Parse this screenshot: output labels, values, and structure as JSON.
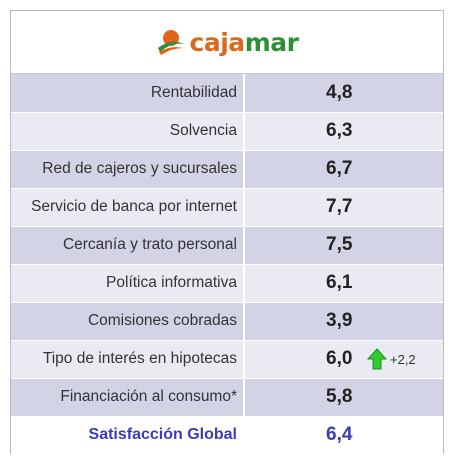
{
  "brand": {
    "name_prefix": "caja",
    "name_suffix": "mar",
    "icon": "cajamar-swoosh-logo",
    "colors": {
      "orange": "#d96a1b",
      "green": "#2f8e3b"
    }
  },
  "rows": [
    {
      "label": "Rentabilidad",
      "value": "4,8"
    },
    {
      "label": "Solvencia",
      "value": "6,3"
    },
    {
      "label": "Red de cajeros y sucursales",
      "value": "6,7"
    },
    {
      "label": "Servicio de banca por internet",
      "value": "7,7"
    },
    {
      "label": "Cercanía y trato personal",
      "value": "7,5"
    },
    {
      "label": "Política informativa",
      "value": "6,1"
    },
    {
      "label": "Comisiones cobradas",
      "value": "3,9"
    },
    {
      "label": "Tipo de interés en hipotecas",
      "value": "6,0",
      "change": "+2,2",
      "change_icon": "green-up-arrow-icon"
    },
    {
      "label": "Financiación al consumo*",
      "value": "5,8"
    }
  ],
  "total": {
    "label": "Satisfacción Global",
    "value": "6,4"
  },
  "colors": {
    "row_dark": "#d3d3e6",
    "row_light": "#eaeaf3",
    "total_text": "#3b3bb8",
    "arrow": "#2ecc2e"
  }
}
